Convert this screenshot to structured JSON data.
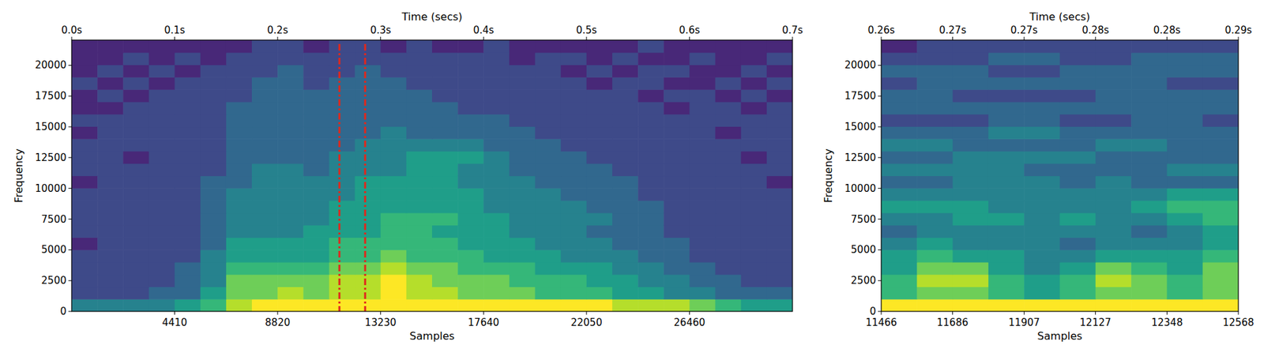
{
  "chart_data": [
    {
      "type": "heatmap",
      "xlabel": "Samples",
      "x2label": "Time (secs)",
      "ylabel": "Frequency",
      "xlim": [
        0,
        30870
      ],
      "xticks": [
        4410,
        8820,
        13230,
        17640,
        22050,
        26460
      ],
      "x2lim": [
        0,
        0.7
      ],
      "x2ticks": [
        {
          "value": 0,
          "label": "0.0s"
        },
        {
          "value": 0.1,
          "label": "0.1s"
        },
        {
          "value": 0.2,
          "label": "0.2s"
        },
        {
          "value": 0.3,
          "label": "0.3s"
        },
        {
          "value": 0.4,
          "label": "0.4s"
        },
        {
          "value": 0.5,
          "label": "0.5s"
        },
        {
          "value": 0.6,
          "label": "0.6s"
        },
        {
          "value": 0.7,
          "label": "0.7s"
        }
      ],
      "ylim": [
        0,
        22050
      ],
      "yticks": [
        0,
        2500,
        5000,
        7500,
        10000,
        12500,
        15000,
        17500,
        20000
      ],
      "zlim": [
        0,
        9
      ],
      "vlines": [
        11466,
        12568
      ],
      "cells": [
        [
          4,
          4,
          4,
          4,
          5,
          6,
          8,
          9,
          9,
          9,
          9,
          9,
          9,
          9,
          9,
          9,
          9,
          9,
          9,
          9,
          9,
          8,
          8,
          8,
          7,
          6,
          5,
          5
        ],
        [
          2,
          2,
          2,
          3,
          3,
          5,
          7,
          7,
          8,
          7,
          8,
          8,
          9,
          8,
          8,
          7,
          7,
          7,
          6,
          6,
          6,
          5,
          5,
          4,
          4,
          3,
          3,
          3
        ],
        [
          2,
          2,
          2,
          2,
          3,
          4,
          7,
          7,
          7,
          7,
          8,
          8,
          9,
          8,
          7,
          7,
          7,
          6,
          6,
          6,
          5,
          5,
          4,
          4,
          3,
          3,
          2,
          2
        ],
        [
          2,
          2,
          2,
          2,
          3,
          4,
          6,
          6,
          6,
          6,
          7,
          7,
          8,
          7,
          7,
          6,
          6,
          6,
          5,
          5,
          5,
          4,
          4,
          3,
          3,
          2,
          2,
          2
        ],
        [
          2,
          2,
          2,
          2,
          2,
          4,
          5,
          5,
          5,
          5,
          6,
          6,
          7,
          6,
          6,
          6,
          5,
          5,
          5,
          4,
          4,
          4,
          3,
          3,
          2,
          2,
          2,
          2
        ],
        [
          1,
          2,
          2,
          2,
          2,
          3,
          5,
          5,
          5,
          5,
          6,
          6,
          6,
          6,
          6,
          5,
          5,
          5,
          4,
          4,
          4,
          3,
          3,
          3,
          2,
          2,
          2,
          2
        ],
        [
          2,
          2,
          2,
          2,
          2,
          3,
          4,
          4,
          4,
          5,
          5,
          5,
          6,
          6,
          5,
          5,
          5,
          4,
          4,
          4,
          3,
          3,
          3,
          2,
          2,
          2,
          2,
          2
        ],
        [
          2,
          2,
          2,
          2,
          2,
          3,
          4,
          4,
          4,
          4,
          5,
          5,
          6,
          6,
          6,
          5,
          5,
          4,
          4,
          4,
          4,
          3,
          3,
          2,
          2,
          2,
          2,
          2
        ],
        [
          2,
          2,
          2,
          2,
          2,
          3,
          4,
          4,
          4,
          4,
          5,
          5,
          5,
          5,
          5,
          5,
          4,
          4,
          4,
          4,
          3,
          3,
          3,
          2,
          2,
          2,
          2,
          2
        ],
        [
          2,
          2,
          2,
          2,
          2,
          3,
          4,
          4,
          4,
          4,
          4,
          5,
          5,
          5,
          5,
          5,
          4,
          4,
          4,
          3,
          3,
          3,
          2,
          2,
          2,
          2,
          2,
          2
        ],
        [
          1,
          2,
          2,
          2,
          2,
          3,
          3,
          4,
          4,
          4,
          4,
          5,
          5,
          5,
          5,
          4,
          4,
          4,
          3,
          3,
          3,
          3,
          2,
          2,
          2,
          2,
          2,
          1
        ],
        [
          2,
          2,
          2,
          2,
          2,
          2,
          3,
          4,
          4,
          3,
          4,
          4,
          4,
          5,
          5,
          4,
          4,
          3,
          3,
          3,
          3,
          2,
          2,
          2,
          2,
          2,
          2,
          2
        ],
        [
          2,
          2,
          1,
          2,
          2,
          2,
          3,
          3,
          3,
          3,
          4,
          4,
          4,
          5,
          5,
          5,
          4,
          3,
          3,
          3,
          2,
          2,
          2,
          2,
          2,
          2,
          1,
          2
        ],
        [
          2,
          2,
          2,
          2,
          2,
          2,
          3,
          3,
          3,
          3,
          3,
          4,
          4,
          4,
          4,
          4,
          3,
          3,
          3,
          2,
          2,
          2,
          2,
          2,
          2,
          2,
          2,
          2
        ],
        [
          1,
          2,
          2,
          2,
          2,
          2,
          3,
          3,
          3,
          3,
          3,
          3,
          4,
          3,
          3,
          3,
          3,
          3,
          2,
          2,
          2,
          2,
          2,
          2,
          2,
          1,
          2,
          2
        ],
        [
          2,
          2,
          2,
          2,
          2,
          2,
          3,
          3,
          3,
          3,
          3,
          3,
          3,
          3,
          3,
          3,
          3,
          2,
          2,
          2,
          2,
          2,
          2,
          2,
          2,
          2,
          2,
          2
        ],
        [
          1,
          1,
          2,
          2,
          2,
          2,
          3,
          3,
          3,
          3,
          3,
          3,
          3,
          3,
          3,
          2,
          2,
          2,
          2,
          2,
          2,
          2,
          2,
          1,
          2,
          2,
          1,
          2
        ],
        [
          1,
          2,
          1,
          2,
          2,
          2,
          2,
          3,
          3,
          3,
          3,
          3,
          3,
          3,
          2,
          2,
          2,
          2,
          2,
          2,
          2,
          2,
          1,
          2,
          2,
          1,
          2,
          1
        ],
        [
          2,
          1,
          2,
          1,
          2,
          2,
          2,
          3,
          3,
          2,
          3,
          3,
          3,
          2,
          2,
          2,
          2,
          2,
          2,
          2,
          1,
          2,
          2,
          1,
          1,
          2,
          1,
          2
        ],
        [
          1,
          2,
          1,
          2,
          1,
          2,
          2,
          2,
          3,
          2,
          2,
          3,
          2,
          2,
          2,
          2,
          2,
          2,
          2,
          1,
          2,
          1,
          2,
          2,
          1,
          1,
          2,
          1
        ],
        [
          1,
          1,
          2,
          1,
          2,
          1,
          2,
          2,
          2,
          2,
          2,
          2,
          2,
          2,
          2,
          2,
          2,
          1,
          2,
          2,
          1,
          2,
          1,
          1,
          2,
          1,
          1,
          2
        ],
        [
          1,
          1,
          1,
          1,
          1,
          1,
          1,
          2,
          2,
          1,
          2,
          2,
          1,
          2,
          1,
          1,
          2,
          1,
          1,
          1,
          1,
          1,
          2,
          1,
          1,
          1,
          1,
          1
        ]
      ]
    },
    {
      "type": "heatmap",
      "xlabel": "Samples",
      "x2label": "Time (secs)",
      "ylabel": "Frequency",
      "xlim": [
        11466,
        12568
      ],
      "xticks": [
        11466,
        11686,
        11907,
        12127,
        12348,
        12568
      ],
      "x2lim": [
        0.26,
        0.285
      ],
      "x2ticks": [
        {
          "value": 0.26,
          "label": "0.26s"
        },
        {
          "value": 0.265,
          "label": "0.27s"
        },
        {
          "value": 0.27,
          "label": "0.27s"
        },
        {
          "value": 0.275,
          "label": "0.28s"
        },
        {
          "value": 0.28,
          "label": "0.28s"
        },
        {
          "value": 0.285,
          "label": "0.29s"
        }
      ],
      "ylim": [
        0,
        22050
      ],
      "yticks": [
        0,
        2500,
        5000,
        7500,
        10000,
        12500,
        15000,
        17500,
        20000
      ],
      "zlim": [
        0,
        9
      ],
      "cells": [
        [
          9,
          9,
          9,
          9,
          9,
          9,
          9,
          9,
          9,
          9
        ],
        [
          6,
          7,
          7,
          6,
          5,
          6,
          7,
          7,
          6,
          7
        ],
        [
          6,
          8,
          8,
          6,
          5,
          6,
          8,
          7,
          6,
          7
        ],
        [
          5,
          7,
          7,
          5,
          4,
          5,
          7,
          6,
          5,
          7
        ],
        [
          5,
          6,
          5,
          5,
          4,
          4,
          5,
          5,
          5,
          6
        ],
        [
          4,
          5,
          4,
          4,
          4,
          3,
          4,
          4,
          4,
          5
        ],
        [
          3,
          4,
          4,
          4,
          4,
          4,
          4,
          3,
          4,
          5
        ],
        [
          4,
          4,
          5,
          5,
          4,
          5,
          4,
          4,
          5,
          6
        ],
        [
          5,
          5,
          5,
          4,
          4,
          4,
          4,
          5,
          6,
          6
        ],
        [
          4,
          4,
          4,
          4,
          4,
          4,
          4,
          4,
          5,
          5
        ],
        [
          3,
          3,
          4,
          4,
          4,
          3,
          4,
          3,
          3,
          3
        ],
        [
          4,
          4,
          4,
          4,
          3,
          3,
          3,
          3,
          4,
          4
        ],
        [
          3,
          3,
          4,
          4,
          4,
          4,
          3,
          3,
          3,
          3
        ],
        [
          4,
          4,
          3,
          3,
          3,
          3,
          4,
          4,
          3,
          3
        ],
        [
          3,
          3,
          3,
          4,
          4,
          3,
          3,
          3,
          3,
          3
        ],
        [
          2,
          2,
          2,
          3,
          3,
          2,
          2,
          3,
          3,
          2
        ],
        [
          3,
          3,
          3,
          3,
          3,
          3,
          3,
          3,
          3,
          3
        ],
        [
          3,
          3,
          2,
          2,
          2,
          2,
          3,
          3,
          3,
          3
        ],
        [
          2,
          3,
          3,
          3,
          3,
          3,
          3,
          3,
          2,
          2
        ],
        [
          3,
          3,
          3,
          2,
          2,
          3,
          3,
          3,
          3,
          3
        ],
        [
          2,
          2,
          2,
          3,
          3,
          2,
          2,
          3,
          3,
          3
        ],
        [
          1,
          2,
          2,
          2,
          2,
          2,
          2,
          2,
          2,
          2
        ]
      ]
    }
  ]
}
